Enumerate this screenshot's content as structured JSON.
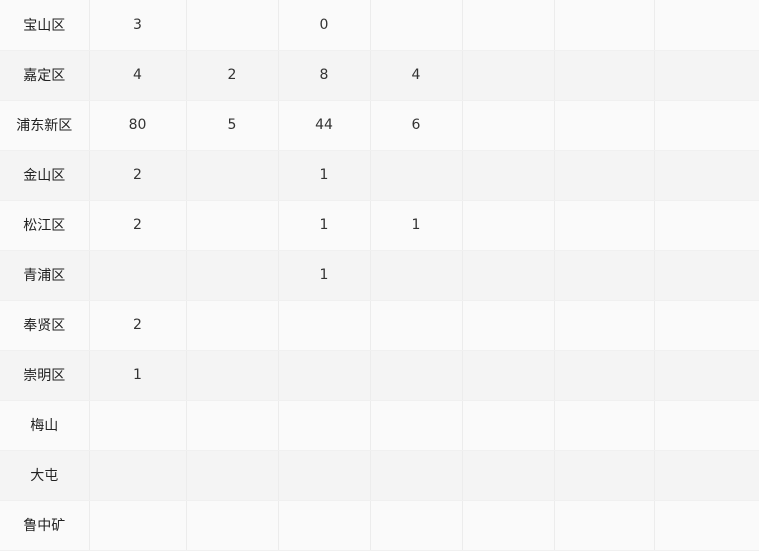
{
  "table": {
    "rows": [
      {
        "name": "宝山区",
        "cells": [
          "3",
          "",
          "0",
          "",
          "",
          "",
          ""
        ]
      },
      {
        "name": "嘉定区",
        "cells": [
          "4",
          "2",
          "8",
          "4",
          "",
          "",
          ""
        ]
      },
      {
        "name": "浦东新区",
        "cells": [
          "80",
          "5",
          "44",
          "6",
          "",
          "",
          ""
        ]
      },
      {
        "name": "金山区",
        "cells": [
          "2",
          "",
          "1",
          "",
          "",
          "",
          ""
        ]
      },
      {
        "name": "松江区",
        "cells": [
          "2",
          "",
          "1",
          "1",
          "",
          "",
          ""
        ]
      },
      {
        "name": "青浦区",
        "cells": [
          "",
          "",
          "1",
          "",
          "",
          "",
          ""
        ]
      },
      {
        "name": "奉贤区",
        "cells": [
          "2",
          "",
          "",
          "",
          "",
          "",
          ""
        ]
      },
      {
        "name": "崇明区",
        "cells": [
          "1",
          "",
          "",
          "",
          "",
          "",
          ""
        ]
      },
      {
        "name": "梅山",
        "cells": [
          "",
          "",
          "",
          "",
          "",
          "",
          ""
        ]
      },
      {
        "name": "大屯",
        "cells": [
          "",
          "",
          "",
          "",
          "",
          "",
          ""
        ]
      },
      {
        "name": "鲁中矿",
        "cells": [
          "",
          "",
          "",
          "",
          "",
          "",
          ""
        ]
      }
    ]
  }
}
